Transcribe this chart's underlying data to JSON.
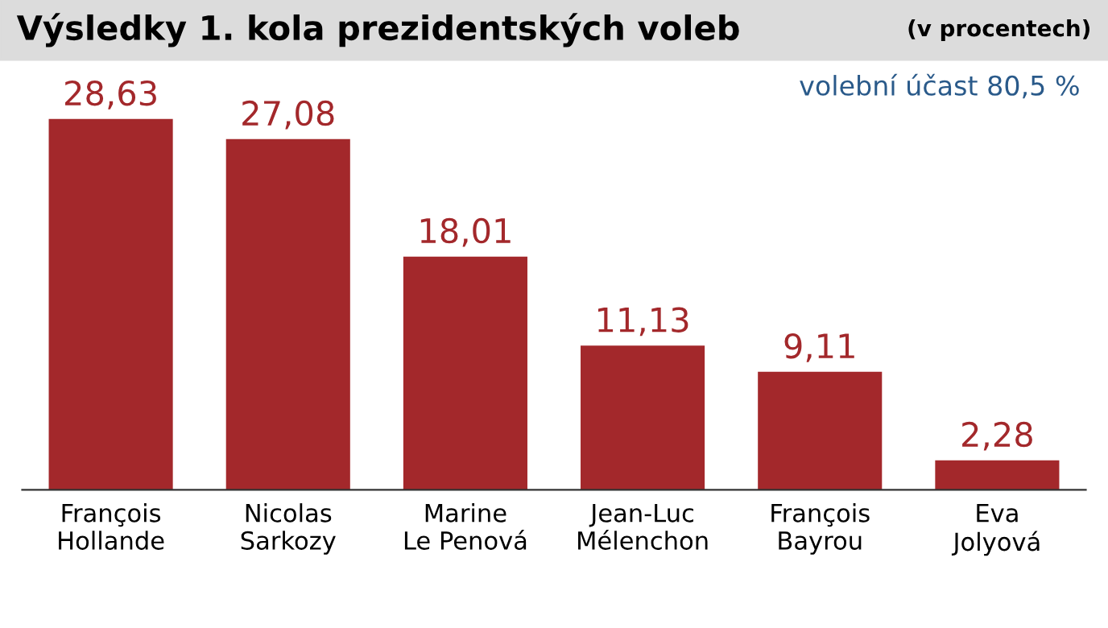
{
  "chart_data": {
    "type": "bar",
    "title": "Výsledky 1. kola prezidentských voleb",
    "subtitle": "(v procentech)",
    "annotations": [
      "volební účast 80,5 %"
    ],
    "categories": [
      "François\nHollande",
      "Nicolas\nSarkozy",
      "Marine\nLe Penová",
      "Jean-Luc\nMélenchon",
      "François\nBayrou",
      "Eva\nJolyová"
    ],
    "values": [
      28.63,
      27.08,
      18.01,
      11.13,
      9.11,
      2.28
    ],
    "value_labels": [
      "28,63",
      "27,08",
      "18,01",
      "11,13",
      "9,11",
      "2,28"
    ],
    "color": "#a3282b",
    "grid": false,
    "legend": false
  }
}
